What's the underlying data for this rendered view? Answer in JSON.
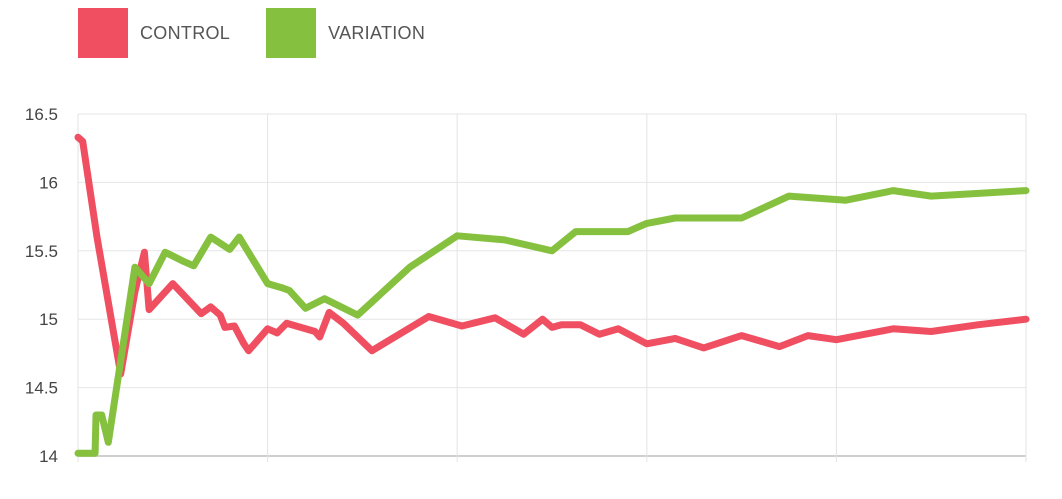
{
  "legend": [
    {
      "label": "CONTROL",
      "color": "#ef4f61"
    },
    {
      "label": "VARIATION",
      "color": "#85c13f"
    }
  ],
  "chart_data": {
    "type": "line",
    "title": "",
    "xlabel": "",
    "ylabel": "",
    "ylim": [
      14,
      16.5
    ],
    "xlim": [
      0,
      100
    ],
    "y_ticks": [
      "14",
      "14.5",
      "15",
      "15.5",
      "16",
      "16.5"
    ],
    "grid": true,
    "legend_position": "top-left",
    "series": [
      {
        "name": "CONTROL",
        "color": "#ef4f61",
        "x": [
          0,
          0.5,
          2,
          4.5,
          6,
          7,
          7.5,
          10,
          13,
          14,
          15,
          15.5,
          16.5,
          17.5,
          18,
          20,
          21,
          22,
          25,
          25.5,
          26.5,
          28,
          31,
          37,
          40.5,
          44,
          47,
          49,
          50,
          51,
          53,
          55,
          57,
          60,
          63,
          66,
          70,
          74,
          77,
          80,
          86,
          90,
          95,
          100
        ],
        "y": [
          16.33,
          16.3,
          15.6,
          14.6,
          15.2,
          15.49,
          15.07,
          15.26,
          15.04,
          15.09,
          15.03,
          14.94,
          14.95,
          14.82,
          14.77,
          14.93,
          14.9,
          14.97,
          14.91,
          14.87,
          15.05,
          14.97,
          14.77,
          15.02,
          14.95,
          15.01,
          14.89,
          15.0,
          14.94,
          14.96,
          14.96,
          14.89,
          14.93,
          14.82,
          14.86,
          14.79,
          14.88,
          14.8,
          14.88,
          14.85,
          14.93,
          14.91,
          14.96,
          15.0
        ]
      },
      {
        "name": "VARIATION",
        "color": "#85c13f",
        "x": [
          0,
          1.8,
          1.9,
          2.5,
          3.2,
          6,
          7.5,
          9.2,
          11.2,
          12.2,
          14,
          16,
          17,
          20,
          21.5,
          22.3,
          24,
          26,
          29.5,
          35,
          40,
          45,
          50,
          52.5,
          55,
          58,
          60,
          63,
          70,
          75,
          81,
          86,
          90,
          100
        ],
        "y": [
          14.02,
          14.02,
          14.3,
          14.3,
          14.1,
          15.38,
          15.26,
          15.49,
          15.42,
          15.39,
          15.6,
          15.51,
          15.6,
          15.26,
          15.23,
          15.21,
          15.08,
          15.15,
          15.03,
          15.38,
          15.61,
          15.58,
          15.5,
          15.64,
          15.64,
          15.64,
          15.7,
          15.74,
          15.74,
          15.9,
          15.87,
          15.94,
          15.9,
          15.94
        ]
      }
    ]
  }
}
